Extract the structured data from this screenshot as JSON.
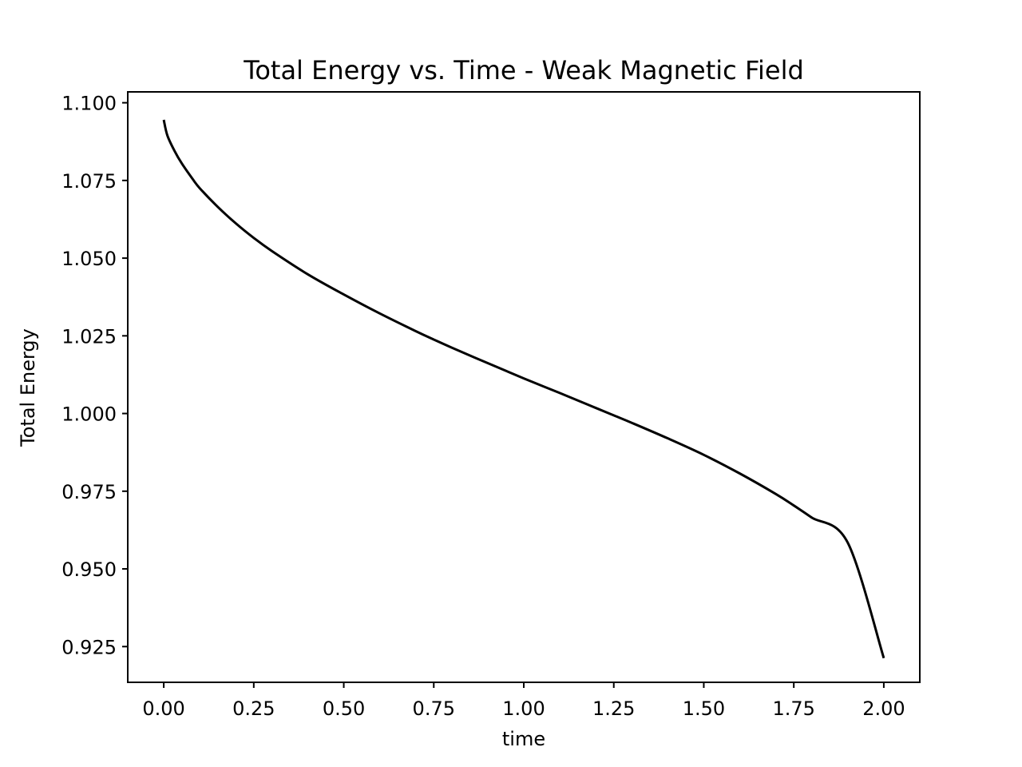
{
  "chart_data": {
    "type": "line",
    "title": "Total Energy vs. Time - Weak Magnetic Field",
    "xlabel": "time",
    "ylabel": "Total Energy",
    "xlim": [
      -0.1,
      2.1
    ],
    "ylim": [
      0.9135,
      1.1035
    ],
    "grid": false,
    "legend": "none",
    "xticks": [
      0.0,
      0.25,
      0.5,
      0.75,
      1.0,
      1.25,
      1.5,
      1.75,
      2.0
    ],
    "xtick_labels": [
      "0.00",
      "0.25",
      "0.50",
      "0.75",
      "1.00",
      "1.25",
      "1.50",
      "1.75",
      "2.00"
    ],
    "yticks": [
      0.925,
      0.95,
      0.975,
      1.0,
      1.025,
      1.05,
      1.075,
      1.1
    ],
    "ytick_labels": [
      "0.925",
      "0.950",
      "0.975",
      "1.000",
      "1.025",
      "1.050",
      "1.075",
      "1.100"
    ],
    "line_color": "#000000",
    "series": [
      {
        "name": "Total Energy",
        "x": [
          0.0,
          0.01,
          0.03,
          0.05,
          0.08,
          0.1,
          0.15,
          0.2,
          0.25,
          0.3,
          0.4,
          0.5,
          0.6,
          0.7,
          0.75,
          0.8,
          0.9,
          1.0,
          1.1,
          1.2,
          1.25,
          1.3,
          1.4,
          1.5,
          1.6,
          1.7,
          1.75,
          1.8,
          1.9,
          2.0
        ],
        "y": [
          1.0945,
          1.0895,
          1.0845,
          1.0805,
          1.0755,
          1.0725,
          1.0665,
          1.0612,
          1.0565,
          1.0523,
          1.0448,
          1.0383,
          1.0322,
          1.0265,
          1.0238,
          1.0212,
          1.0162,
          1.0113,
          1.0066,
          1.0018,
          0.9994,
          0.997,
          0.992,
          0.9867,
          0.9807,
          0.9741,
          0.9704,
          0.9665,
          0.9584,
          0.9213
        ]
      }
    ]
  }
}
